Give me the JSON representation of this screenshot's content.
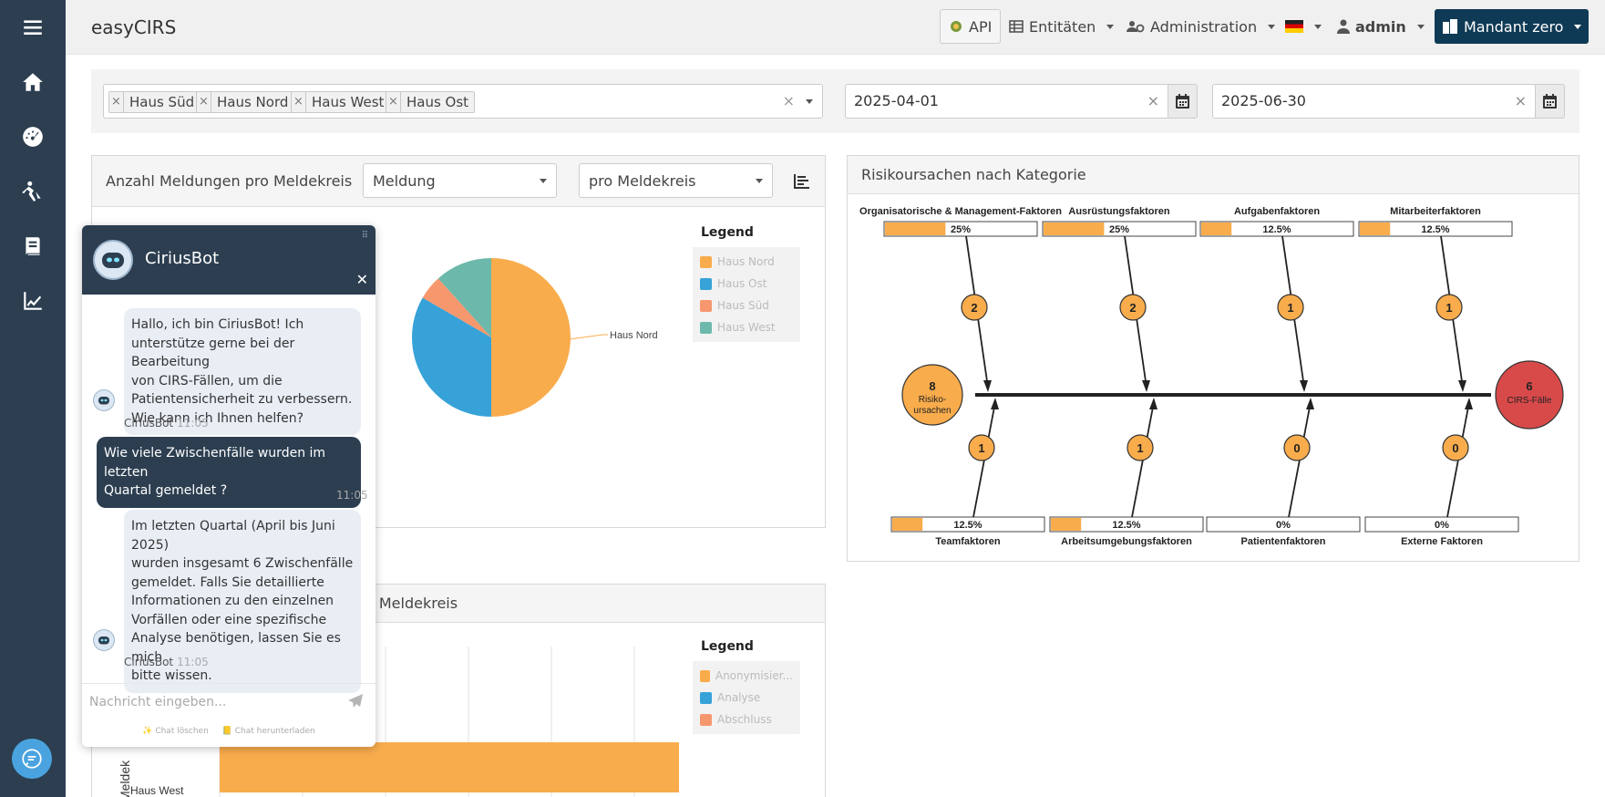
{
  "app": {
    "title": "easyCIRS"
  },
  "nav": {
    "api": "API",
    "entities": "Entitäten",
    "administration": "Administration",
    "user": "admin",
    "tenant": "Mandant zero"
  },
  "sidebar": {
    "items": [
      {
        "name": "menu-icon"
      },
      {
        "name": "home-icon"
      },
      {
        "name": "dashboard-icon"
      },
      {
        "name": "incident-icon"
      },
      {
        "name": "book-icon"
      },
      {
        "name": "statistics-icon"
      }
    ]
  },
  "filter": {
    "tags": [
      "Haus Süd",
      "Haus Nord",
      "Haus West",
      "Haus Ost"
    ],
    "date_from": "2025-04-01",
    "date_to": "2025-06-30"
  },
  "panel_pie": {
    "title": "Anzahl Meldungen pro Meldekreis",
    "select_type": "Meldung",
    "select_group": "pro Meldekreis",
    "legend_title": "Legend",
    "legend": [
      "Haus Nord",
      "Haus Ost",
      "Haus Süd",
      "Haus West"
    ],
    "label_nord": "Haus Nord"
  },
  "panel_bar": {
    "title_fragment": "o Meldekreis",
    "legend_title": "Legend",
    "legend": [
      "Anonymisier...",
      "Analyse",
      "Abschluss"
    ],
    "axis_label_fragment": "Meldek",
    "row_label": "Haus West"
  },
  "panel_fishbone": {
    "title": "Risikoursachen nach Kategorie",
    "top": [
      {
        "label": "Organisatorische & Management-Faktoren",
        "pct": "25%",
        "count": "2"
      },
      {
        "label": "Ausrüstungsfaktoren",
        "pct": "25%",
        "count": "2"
      },
      {
        "label": "Aufgabenfaktoren",
        "pct": "12.5%",
        "count": "1"
      },
      {
        "label": "Mitarbeiterfaktoren",
        "pct": "12.5%",
        "count": "1"
      }
    ],
    "bottom": [
      {
        "label": "Teamfaktoren",
        "pct": "12.5%",
        "count": "1"
      },
      {
        "label": "Arbeitsumgebungsfaktoren",
        "pct": "12.5%",
        "count": "1"
      },
      {
        "label": "Patientenfaktoren",
        "pct": "0%",
        "count": "0"
      },
      {
        "label": "Externe Faktoren",
        "pct": "0%",
        "count": "0"
      }
    ],
    "left_count": "8",
    "left_label_1": "Risiko-",
    "left_label_2": "ursachen",
    "right_count": "6",
    "right_label": "CIRS-Fälle"
  },
  "chart_data": [
    {
      "type": "pie",
      "title": "Anzahl Meldungen pro Meldekreis",
      "categories": [
        "Haus Nord",
        "Haus Ost",
        "Haus Süd",
        "Haus West"
      ],
      "values": [
        3,
        2,
        0.3,
        0.7
      ],
      "colors": [
        "#f9ac4c",
        "#36a2d8",
        "#f7976e",
        "#6cb9ab"
      ]
    },
    {
      "type": "bar",
      "title": "pro Meldekreis",
      "categories": [
        "Haus West"
      ],
      "series": [
        {
          "name": "Anonymisier...",
          "values": [
            1
          ]
        }
      ],
      "colors": [
        "#f9ac4c",
        "#36a2d8",
        "#f7976e"
      ]
    },
    {
      "type": "bar",
      "title": "Risikoursachen nach Kategorie",
      "categories": [
        "Organisatorische & Management-Faktoren",
        "Ausrüstungsfaktoren",
        "Aufgabenfaktoren",
        "Mitarbeiterfaktoren",
        "Teamfaktoren",
        "Arbeitsumgebungsfaktoren",
        "Patientenfaktoren",
        "Externe Faktoren"
      ],
      "values": [
        25,
        25,
        12.5,
        12.5,
        12.5,
        12.5,
        0,
        0
      ],
      "counts": [
        2,
        2,
        1,
        1,
        1,
        1,
        0,
        0
      ]
    }
  ],
  "chatbot": {
    "name": "CiriusBot",
    "messages": [
      {
        "from": "bot",
        "lines": [
          "Hallo, ich bin CiriusBot! Ich",
          "unterstütze gerne bei der Bearbeitung",
          "von CIRS-Fällen, um die",
          "Patientensicherheit zu verbessern.",
          "Wie kann ich Ihnen helfen?"
        ],
        "sender": "CiriusBot",
        "time": "11:05"
      },
      {
        "from": "user",
        "lines": [
          "Wie viele Zwischenfälle wurden im letzten",
          "Quartal gemeldet ?"
        ],
        "time": "11:05"
      },
      {
        "from": "bot",
        "lines": [
          "Im letzten Quartal (April bis Juni 2025)",
          "wurden insgesamt 6 Zwischenfälle",
          "gemeldet. Falls Sie detaillierte",
          "Informationen zu den einzelnen",
          "Vorfällen oder eine spezifische",
          "Analyse benötigen, lassen Sie es mich",
          "bitte wissen."
        ],
        "sender": "CiriusBot",
        "time": "11:05"
      }
    ],
    "input_placeholder": "Nachricht eingeben...",
    "action_clear": "✨ Chat löschen",
    "action_download": "📒 Chat herunterladen"
  }
}
